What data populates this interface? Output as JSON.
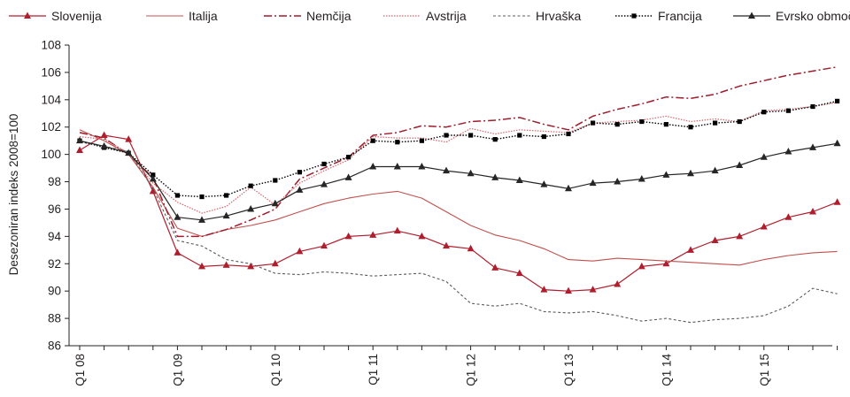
{
  "chart_data": {
    "type": "line",
    "ylabel": "Desezoniran indeks 2008=100",
    "ylim": [
      86,
      108
    ],
    "yticks": [
      "86",
      "88",
      "90",
      "92",
      "94",
      "96",
      "98",
      "100",
      "102",
      "104",
      "106",
      "108"
    ],
    "x_tick_labels": [
      "Q1 08",
      "Q1 09",
      "Q1 10",
      "Q1 11",
      "Q1 12",
      "Q1 13",
      "Q1 14",
      "Q1 15"
    ],
    "x": [
      "Q1 08",
      "Q2 08",
      "Q3 08",
      "Q4 08",
      "Q1 09",
      "Q2 09",
      "Q3 09",
      "Q4 09",
      "Q1 10",
      "Q2 10",
      "Q3 10",
      "Q4 10",
      "Q1 11",
      "Q2 11",
      "Q3 11",
      "Q4 11",
      "Q1 12",
      "Q2 12",
      "Q3 12",
      "Q4 12",
      "Q1 13",
      "Q2 13",
      "Q3 13",
      "Q4 13",
      "Q1 14",
      "Q2 14",
      "Q3 14",
      "Q4 14",
      "Q1 15",
      "Q2 15",
      "Q3 15",
      "Q4 15"
    ],
    "grid": false,
    "legend_position": "top",
    "series": [
      {
        "name": "Slovenija",
        "color": "#b01e2d",
        "style": "solid-triangle",
        "values": [
          100.3,
          101.4,
          101.1,
          97.3,
          92.8,
          91.8,
          91.9,
          91.8,
          92.0,
          92.9,
          93.3,
          94.0,
          94.1,
          94.4,
          94.0,
          93.3,
          93.1,
          91.7,
          91.3,
          90.1,
          90.0,
          90.1,
          90.5,
          91.8,
          92.0,
          93.0,
          93.7,
          94.0,
          94.7,
          95.4,
          95.8,
          96.5
        ]
      },
      {
        "name": "Italija",
        "color": "#c0504d",
        "style": "thin-solid",
        "values": [
          101.8,
          101.0,
          100.0,
          97.6,
          94.6,
          94.0,
          94.5,
          94.8,
          95.2,
          95.8,
          96.4,
          96.8,
          97.1,
          97.3,
          96.8,
          95.8,
          94.8,
          94.1,
          93.7,
          93.1,
          92.3,
          92.2,
          92.4,
          92.3,
          92.2,
          92.1,
          92.0,
          91.9,
          92.3,
          92.6,
          92.8,
          92.9
        ]
      },
      {
        "name": "Nemčija",
        "color": "#9e1c2c",
        "style": "dash-dot",
        "values": [
          101.6,
          101.2,
          100.0,
          98.3,
          94.0,
          94.0,
          94.5,
          95.2,
          96.0,
          98.2,
          99.0,
          99.8,
          101.4,
          101.6,
          102.1,
          102.0,
          102.4,
          102.5,
          102.7,
          102.2,
          101.8,
          102.8,
          103.3,
          103.7,
          104.2,
          104.1,
          104.4,
          105.0,
          105.4,
          105.8,
          106.1,
          106.4
        ]
      },
      {
        "name": "Avstrija",
        "color": "#d9636a",
        "style": "dotted",
        "values": [
          101.3,
          101.1,
          100.1,
          97.9,
          96.5,
          95.7,
          96.2,
          97.6,
          96.3,
          97.9,
          98.8,
          99.6,
          101.3,
          101.2,
          101.2,
          100.9,
          101.9,
          101.5,
          101.8,
          101.7,
          101.6,
          102.3,
          102.4,
          102.5,
          102.8,
          102.4,
          102.6,
          102.4,
          103.2,
          103.3,
          103.5,
          103.8
        ]
      },
      {
        "name": "Hrvaška",
        "color": "#595959",
        "style": "dashed",
        "values": [
          100.9,
          100.6,
          100.2,
          97.5,
          93.7,
          93.3,
          92.3,
          92.0,
          91.3,
          91.2,
          91.4,
          91.3,
          91.1,
          91.2,
          91.3,
          90.7,
          89.1,
          88.9,
          89.1,
          88.5,
          88.4,
          88.5,
          88.2,
          87.8,
          88.0,
          87.7,
          87.9,
          88.0,
          88.2,
          88.9,
          90.2,
          89.8
        ]
      },
      {
        "name": "Francija",
        "color": "#000000",
        "style": "dotted-square",
        "values": [
          101.0,
          100.5,
          100.1,
          98.5,
          97.0,
          96.9,
          97.0,
          97.7,
          98.1,
          98.7,
          99.3,
          99.8,
          101.0,
          100.9,
          101.0,
          101.4,
          101.4,
          101.1,
          101.4,
          101.3,
          101.5,
          102.3,
          102.2,
          102.4,
          102.2,
          102.0,
          102.3,
          102.4,
          103.1,
          103.2,
          103.5,
          103.9
        ]
      },
      {
        "name": "Evrsko območje",
        "color": "#262626",
        "style": "solid-triangle",
        "values": [
          101.0,
          100.6,
          100.1,
          98.2,
          95.4,
          95.2,
          95.5,
          96.0,
          96.4,
          97.4,
          97.8,
          98.3,
          99.1,
          99.1,
          99.1,
          98.8,
          98.6,
          98.3,
          98.1,
          97.8,
          97.5,
          97.9,
          98.0,
          98.2,
          98.5,
          98.6,
          98.8,
          99.2,
          99.8,
          100.2,
          100.5,
          100.8
        ]
      }
    ]
  }
}
